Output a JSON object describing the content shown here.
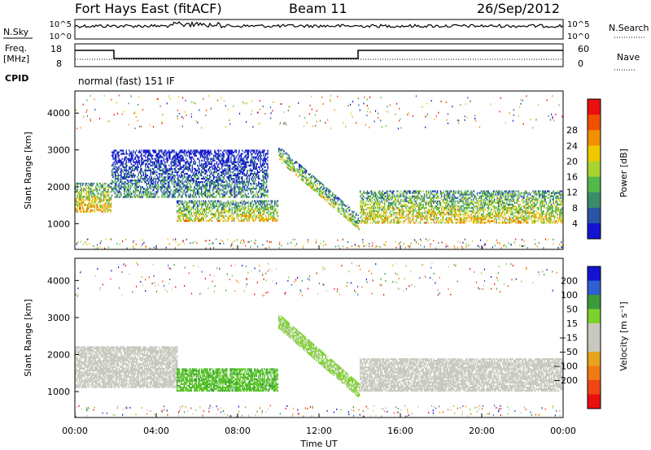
{
  "header": {
    "station": "Fort Hays East (fitACF)",
    "beam": "Beam 11",
    "date": "26/Sep/2012"
  },
  "noise_panel": {
    "left_label": "N.Sky",
    "right_label": "N.Search",
    "left_ticks": [
      "10^5",
      "10^0"
    ],
    "right_ticks": [
      "10^5",
      "10^0"
    ]
  },
  "freq_panel": {
    "left_label_top": "Freq.",
    "left_label_unit": "[MHz]",
    "right_label": "Nave",
    "left_ticks": [
      "18",
      "8"
    ],
    "right_ticks": [
      "60",
      "0"
    ],
    "cpid_label": "CPID",
    "mode_text": "normal (fast) 151 IF"
  },
  "time_axis": {
    "xlabel": "Time UT",
    "ticks": [
      "00:00",
      "04:00",
      "08:00",
      "12:00",
      "16:00",
      "20:00",
      "00:00"
    ]
  },
  "colors": {
    "power_scale": [
      "#1414d0",
      "#2855a8",
      "#3c8c6a",
      "#52b84a",
      "#a8d430",
      "#f0c800",
      "#f09000",
      "#f05000",
      "#e81010"
    ],
    "velocity_scale": [
      "#1414d0",
      "#2f5fd0",
      "#3b9a3b",
      "#7cd22c",
      "#c8c8be",
      "#c8c8be",
      "#e6a41e",
      "#f07a14",
      "#f04614",
      "#e81010"
    ],
    "ground_scatter": "#c8c8be"
  },
  "chart_data": [
    {
      "type": "heatmap",
      "name": "power",
      "ylabel": "Slant Range [km]",
      "colorbar_label": "Power [dB]",
      "colorbar_ticks": [
        "4",
        "8",
        "12",
        "16",
        "20",
        "24",
        "28"
      ],
      "x_range_hours": [
        0,
        24
      ],
      "y_range_km": [
        300,
        4600
      ],
      "y_ticks": [
        "1000",
        "2000",
        "3000",
        "4000"
      ],
      "features": [
        {
          "t0": 0.0,
          "t1": 1.8,
          "r0": 1300,
          "r1": 2100,
          "level": 0.75
        },
        {
          "t0": 1.8,
          "t1": 9.5,
          "r0": 1700,
          "r1": 3000,
          "level": 0.35
        },
        {
          "t0": 5.0,
          "t1": 10.0,
          "r0": 1050,
          "r1": 1600,
          "level": 0.7
        },
        {
          "t0": 10.0,
          "t1": 14.0,
          "r0": 900,
          "r1": 3100,
          "level": 0.6
        },
        {
          "t0": 14.0,
          "t1": 24.0,
          "r0": 1000,
          "r1": 1900,
          "level": 0.7
        }
      ]
    },
    {
      "type": "heatmap",
      "name": "velocity",
      "ylabel": "Slant Range [km]",
      "colorbar_label": "Velocity [m s⁻¹]",
      "colorbar_ticks": [
        "200",
        "100",
        "50",
        "15",
        "−15",
        "−50",
        "−100",
        "−200"
      ],
      "x_range_hours": [
        0,
        24
      ],
      "y_range_km": [
        300,
        4600
      ],
      "y_ticks": [
        "1000",
        "2000",
        "3000",
        "4000"
      ],
      "features": [
        {
          "t0": 0.0,
          "t1": 5.0,
          "r0": 1100,
          "r1": 2200,
          "kind": "ground"
        },
        {
          "t0": 5.0,
          "t1": 10.0,
          "r0": 1000,
          "r1": 1600,
          "kind": "green"
        },
        {
          "t0": 10.0,
          "t1": 14.0,
          "r0": 900,
          "r1": 3100,
          "kind": "green-edge"
        },
        {
          "t0": 14.0,
          "t1": 24.0,
          "r0": 1000,
          "r1": 1900,
          "kind": "ground"
        }
      ]
    }
  ]
}
